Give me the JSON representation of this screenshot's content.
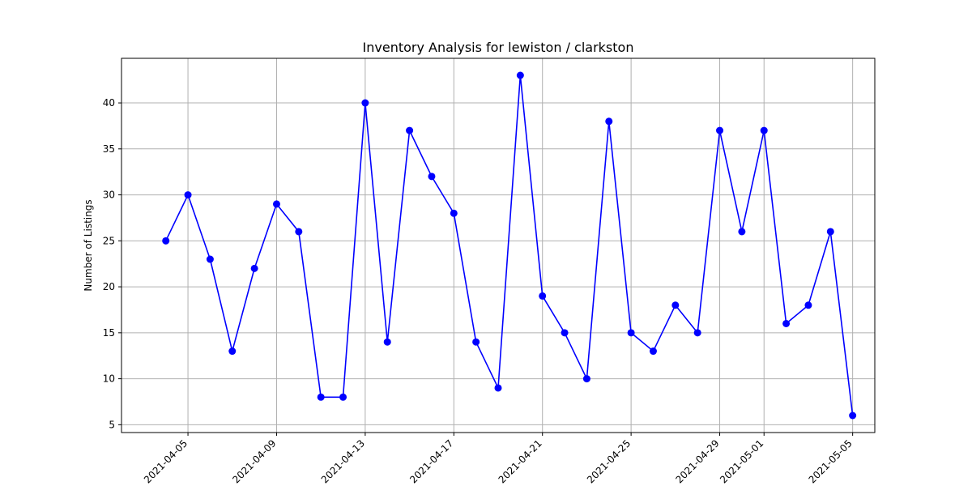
{
  "chart_data": {
    "type": "line",
    "title": "Inventory Analysis for lewiston / clarkston",
    "xlabel": "",
    "ylabel": "Number of Listings",
    "x": [
      "2021-04-04",
      "2021-04-05",
      "2021-04-06",
      "2021-04-07",
      "2021-04-08",
      "2021-04-09",
      "2021-04-10",
      "2021-04-11",
      "2021-04-12",
      "2021-04-13",
      "2021-04-14",
      "2021-04-15",
      "2021-04-16",
      "2021-04-17",
      "2021-04-18",
      "2021-04-19",
      "2021-04-20",
      "2021-04-21",
      "2021-04-22",
      "2021-04-23",
      "2021-04-24",
      "2021-04-25",
      "2021-04-26",
      "2021-04-27",
      "2021-04-28",
      "2021-04-29",
      "2021-04-30",
      "2021-05-01",
      "2021-05-02",
      "2021-05-03",
      "2021-05-04",
      "2021-05-05"
    ],
    "series": [
      {
        "values": [
          25,
          30,
          23,
          13,
          22,
          29,
          26,
          8,
          8,
          40,
          14,
          37,
          32,
          28,
          14,
          9,
          43,
          19,
          15,
          10,
          38,
          15,
          13,
          18,
          15,
          37,
          26,
          37,
          16,
          18,
          26,
          6
        ],
        "color": "#0000ff",
        "marker": "circle"
      }
    ],
    "x_ticks": [
      "2021-04-05",
      "2021-04-09",
      "2021-04-13",
      "2021-04-17",
      "2021-04-21",
      "2021-04-25",
      "2021-04-29",
      "2021-05-01",
      "2021-05-05"
    ],
    "y_ticks": [
      5,
      10,
      15,
      20,
      25,
      30,
      35,
      40
    ],
    "ylim": [
      4.15,
      44.85
    ],
    "xlim": [
      "2021-04-02",
      "2021-05-06"
    ],
    "grid": true,
    "x_tick_rotation": 45
  }
}
